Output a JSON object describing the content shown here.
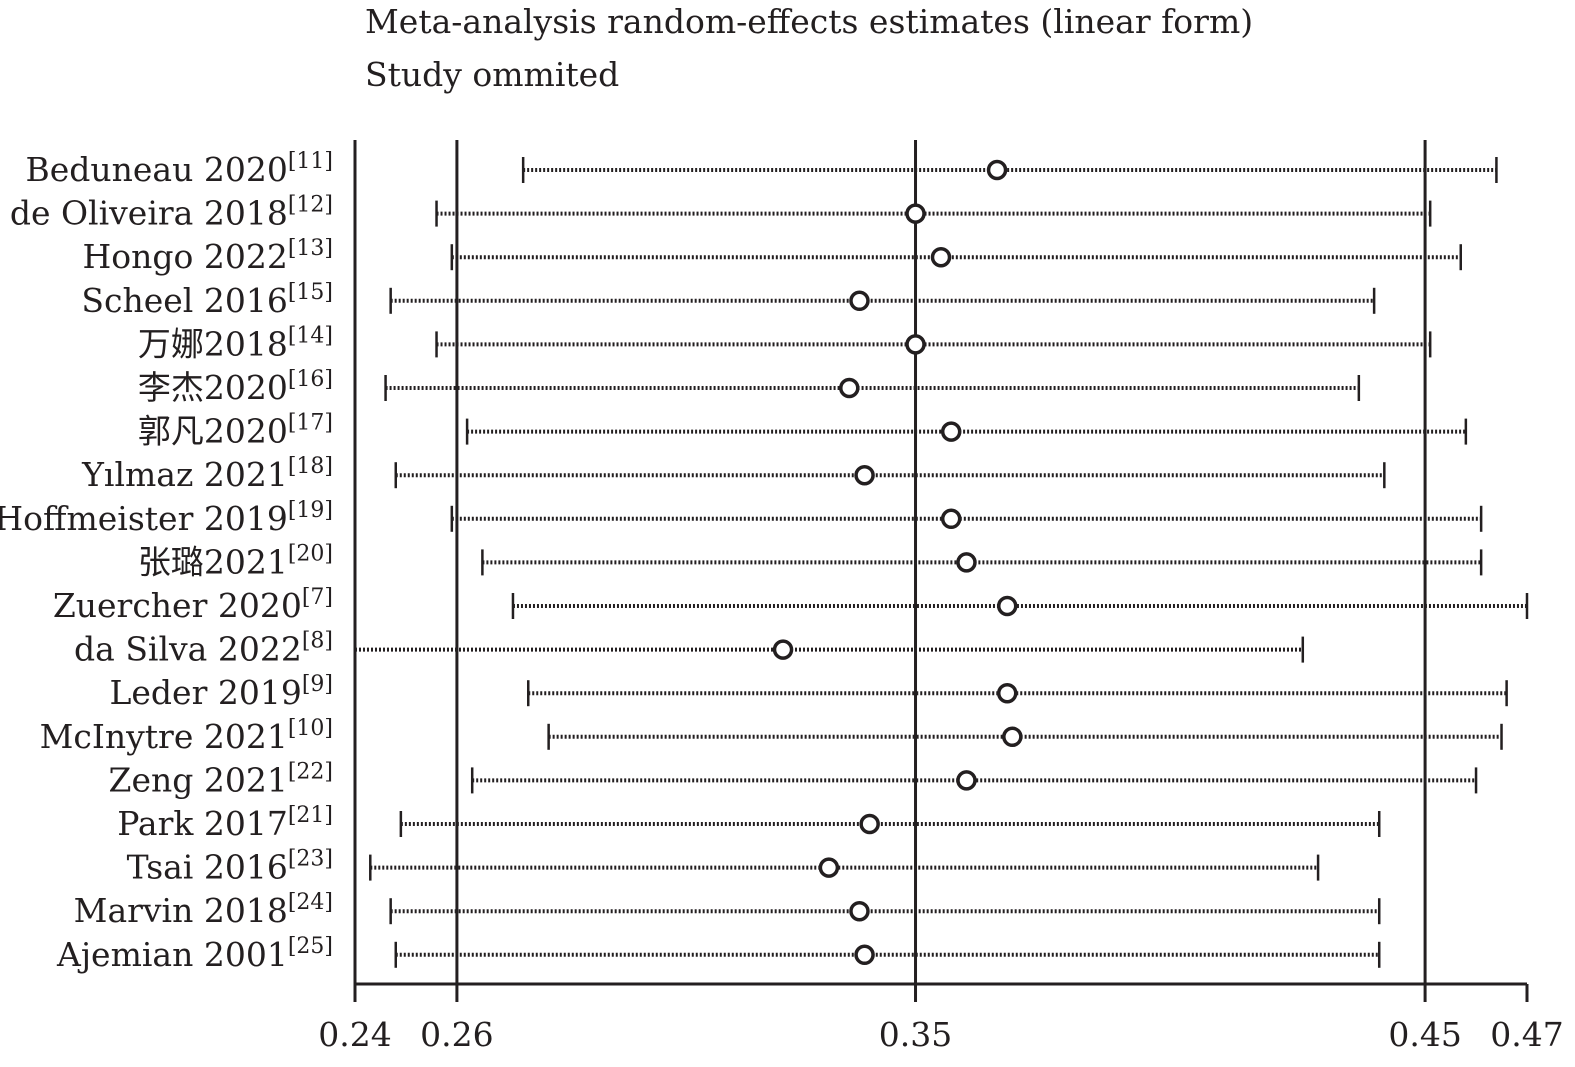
{
  "chart_data": {
    "type": "scatter",
    "title": "Meta-analysis random-effects estimates (linear form)",
    "subtitle": "Study ommited",
    "xlim": [
      0.24,
      0.47
    ],
    "x_ticks": [
      0.24,
      0.26,
      0.35,
      0.45,
      0.47
    ],
    "tick_labels": [
      "0.24",
      "0.26",
      "0.35",
      "0.45",
      "0.47"
    ],
    "reference_lines": [
      0.26,
      0.35,
      0.45
    ],
    "grid": false,
    "studies": [
      {
        "name": "Beduneau 2020",
        "ref": "[11]",
        "estimate": 0.366,
        "lower": 0.273,
        "upper": 0.464
      },
      {
        "name": "de Oliveira 2018",
        "ref": "[12]",
        "estimate": 0.35,
        "lower": 0.256,
        "upper": 0.451
      },
      {
        "name": "Hongo 2022",
        "ref": "[13]",
        "estimate": 0.355,
        "lower": 0.259,
        "upper": 0.457
      },
      {
        "name": "Scheel 2016",
        "ref": "[15]",
        "estimate": 0.339,
        "lower": 0.247,
        "upper": 0.44
      },
      {
        "name": "万娜2018",
        "ref": "[14]",
        "estimate": 0.35,
        "lower": 0.256,
        "upper": 0.451
      },
      {
        "name": "李杰2020",
        "ref": "[16]",
        "estimate": 0.337,
        "lower": 0.246,
        "upper": 0.437
      },
      {
        "name": "郭凡2020",
        "ref": "[17]",
        "estimate": 0.357,
        "lower": 0.262,
        "upper": 0.458
      },
      {
        "name": "Yılmaz 2021",
        "ref": "[18]",
        "estimate": 0.34,
        "lower": 0.248,
        "upper": 0.442
      },
      {
        "name": "Hoffmeister 2019",
        "ref": "[19]",
        "estimate": 0.357,
        "lower": 0.259,
        "upper": 0.461
      },
      {
        "name": "张璐2021",
        "ref": "[20]",
        "estimate": 0.36,
        "lower": 0.265,
        "upper": 0.461
      },
      {
        "name": "Zuercher 2020",
        "ref": "[7]",
        "estimate": 0.368,
        "lower": 0.271,
        "upper": 0.47
      },
      {
        "name": "da Silva 2022",
        "ref": "[8]",
        "estimate": 0.324,
        "lower": 0.24,
        "upper": 0.426
      },
      {
        "name": "Leder 2019",
        "ref": "[9]",
        "estimate": 0.368,
        "lower": 0.274,
        "upper": 0.466
      },
      {
        "name": "McInytre 2021",
        "ref": "[10]",
        "estimate": 0.369,
        "lower": 0.278,
        "upper": 0.465
      },
      {
        "name": "Zeng 2021",
        "ref": "[22]",
        "estimate": 0.36,
        "lower": 0.263,
        "upper": 0.46
      },
      {
        "name": "Park 2017",
        "ref": "[21]",
        "estimate": 0.341,
        "lower": 0.249,
        "upper": 0.441
      },
      {
        "name": "Tsai 2016",
        "ref": "[23]",
        "estimate": 0.333,
        "lower": 0.243,
        "upper": 0.429
      },
      {
        "name": "Marvin 2018",
        "ref": "[24]",
        "estimate": 0.339,
        "lower": 0.247,
        "upper": 0.441
      },
      {
        "name": "Ajemian 2001",
        "ref": "[25]",
        "estimate": 0.34,
        "lower": 0.248,
        "upper": 0.441
      }
    ]
  }
}
